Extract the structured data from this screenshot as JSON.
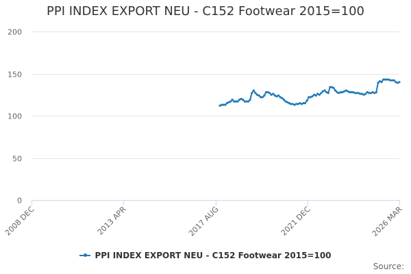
{
  "title": "PPI INDEX EXPORT NEU - C152 Footwear 2015=100",
  "source_label": "Source:",
  "colors": {
    "series": "#1f7ab8",
    "grid": "#e6e6e6",
    "text": "#666666",
    "axis": "#ccd6eb"
  },
  "chart_data": {
    "type": "line",
    "title": "PPI INDEX EXPORT NEU - C152 Footwear 2015=100",
    "xlabel": "",
    "ylabel": "",
    "ylim": [
      0,
      200
    ],
    "yticks": [
      0,
      50,
      100,
      150,
      200
    ],
    "xlim": [
      "2008-12",
      "2026-03"
    ],
    "xticks": [
      "2008 DEC",
      "2013 APR",
      "2017 AUG",
      "2021 DEC",
      "2026 MAR"
    ],
    "legend": "bottom",
    "grid": true,
    "series": [
      {
        "name": "PPI INDEX EXPORT NEU - C152 Footwear 2015=100",
        "x": [
          "2017-10",
          "2017-11",
          "2017-12",
          "2018-01",
          "2018-02",
          "2018-03",
          "2018-04",
          "2018-05",
          "2018-06",
          "2018-07",
          "2018-08",
          "2018-09",
          "2018-10",
          "2018-11",
          "2018-12",
          "2019-01",
          "2019-02",
          "2019-03",
          "2019-04",
          "2019-05",
          "2019-06",
          "2019-07",
          "2019-08",
          "2019-09",
          "2019-10",
          "2019-11",
          "2019-12",
          "2020-01",
          "2020-02",
          "2020-03",
          "2020-04",
          "2020-05",
          "2020-06",
          "2020-07",
          "2020-08",
          "2020-09",
          "2020-10",
          "2020-11",
          "2020-12",
          "2021-01",
          "2021-02",
          "2021-03",
          "2021-04",
          "2021-05",
          "2021-06",
          "2021-07",
          "2021-08",
          "2021-09",
          "2021-10",
          "2021-11",
          "2021-12",
          "2022-01",
          "2022-02",
          "2022-03",
          "2022-04",
          "2022-05",
          "2022-06",
          "2022-07",
          "2022-08",
          "2022-09",
          "2022-10",
          "2022-11",
          "2022-12",
          "2023-01",
          "2023-02",
          "2023-03",
          "2023-04",
          "2023-05",
          "2023-06",
          "2023-07",
          "2023-08",
          "2023-09",
          "2023-10",
          "2023-11",
          "2023-12",
          "2024-01",
          "2024-02",
          "2024-03",
          "2024-04",
          "2024-05",
          "2024-06",
          "2024-07",
          "2024-08",
          "2024-09",
          "2024-10",
          "2024-11",
          "2024-12",
          "2025-01",
          "2025-02",
          "2025-03",
          "2025-04",
          "2025-05",
          "2025-06",
          "2025-07",
          "2025-08",
          "2025-09",
          "2025-10",
          "2025-11",
          "2025-12",
          "2026-01",
          "2026-02",
          "2026-03"
        ],
        "y": [
          112,
          113,
          113,
          113,
          115,
          116,
          117,
          119,
          117,
          117,
          117,
          119,
          120,
          119,
          117,
          117,
          117,
          119,
          127,
          130,
          127,
          125,
          124,
          122,
          122,
          124,
          128,
          128,
          127,
          125,
          126,
          124,
          123,
          124,
          122,
          121,
          119,
          117,
          116,
          115,
          114,
          114,
          113,
          114,
          114,
          115,
          114,
          115,
          115,
          118,
          122,
          122,
          123,
          125,
          124,
          126,
          125,
          127,
          129,
          130,
          128,
          127,
          134,
          134,
          133,
          130,
          128,
          127,
          128,
          128,
          129,
          130,
          129,
          128,
          128,
          128,
          127,
          127,
          127,
          126,
          126,
          125,
          126,
          128,
          127,
          127,
          128,
          127,
          128,
          139,
          141,
          140,
          143,
          143,
          143,
          143,
          142,
          142,
          142,
          140,
          139,
          140
        ]
      }
    ]
  }
}
